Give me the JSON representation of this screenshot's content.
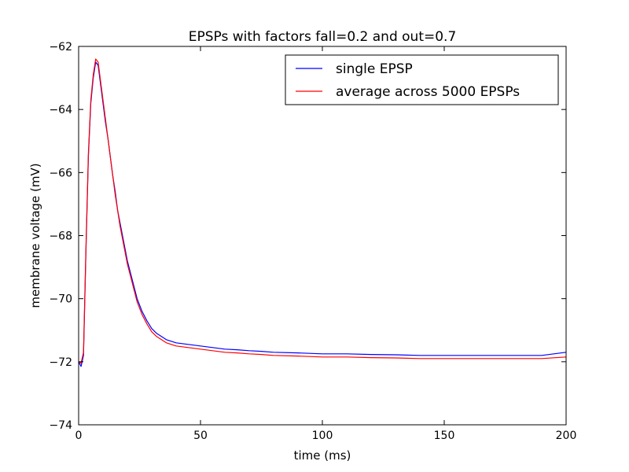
{
  "chart_data": {
    "type": "line",
    "title": "EPSPs with factors fall=0.2 and out=0.7",
    "xlabel": "time (ms)",
    "ylabel": "membrane voltage (mV)",
    "xlim": [
      0,
      200
    ],
    "ylim": [
      -74,
      -62
    ],
    "xticks": [
      0,
      50,
      100,
      150,
      200
    ],
    "yticks": [
      -74,
      -72,
      -70,
      -68,
      -66,
      -64,
      -62
    ],
    "xtick_labels": [
      "0",
      "50",
      "100",
      "150",
      "200"
    ],
    "ytick_labels": [
      "−74",
      "−72",
      "−70",
      "−68",
      "−66",
      "−64",
      "−62"
    ],
    "grid": false,
    "legend_position": "top-right",
    "series": [
      {
        "name": "single EPSP",
        "color": "#0000ff",
        "x": [
          0,
          1,
          2,
          3,
          4,
          5,
          6,
          7,
          8,
          9,
          10,
          11,
          12,
          13,
          14,
          15,
          16,
          17,
          18,
          19,
          20,
          22,
          24,
          26,
          28,
          30,
          32,
          34,
          36,
          38,
          40,
          45,
          50,
          55,
          60,
          65,
          70,
          75,
          80,
          90,
          100,
          110,
          120,
          130,
          140,
          150,
          160,
          170,
          180,
          190,
          200
        ],
        "y": [
          -72.0,
          -72.15,
          -71.8,
          -68.5,
          -65.5,
          -63.8,
          -63.0,
          -62.5,
          -62.6,
          -63.2,
          -63.8,
          -64.4,
          -64.9,
          -65.5,
          -66.1,
          -66.6,
          -67.2,
          -67.6,
          -68.0,
          -68.4,
          -68.8,
          -69.4,
          -70.0,
          -70.4,
          -70.7,
          -70.95,
          -71.1,
          -71.2,
          -71.3,
          -71.35,
          -71.4,
          -71.45,
          -71.5,
          -71.55,
          -71.6,
          -71.62,
          -71.65,
          -71.67,
          -71.7,
          -71.72,
          -71.75,
          -71.75,
          -71.77,
          -71.78,
          -71.8,
          -71.8,
          -71.8,
          -71.8,
          -71.8,
          -71.8,
          -71.7
        ]
      },
      {
        "name": "average across 5000 EPSPs",
        "color": "#ff0000",
        "x": [
          0,
          1,
          2,
          3,
          4,
          5,
          6,
          7,
          8,
          9,
          10,
          11,
          12,
          13,
          14,
          15,
          16,
          17,
          18,
          19,
          20,
          22,
          24,
          26,
          28,
          30,
          32,
          34,
          36,
          38,
          40,
          45,
          50,
          55,
          60,
          65,
          70,
          75,
          80,
          90,
          100,
          110,
          120,
          130,
          140,
          150,
          160,
          170,
          180,
          190,
          200
        ],
        "y": [
          -72.0,
          -72.05,
          -71.7,
          -68.4,
          -65.4,
          -63.7,
          -62.9,
          -62.4,
          -62.5,
          -63.1,
          -63.7,
          -64.3,
          -64.9,
          -65.5,
          -66.1,
          -66.7,
          -67.2,
          -67.7,
          -68.1,
          -68.5,
          -68.9,
          -69.5,
          -70.1,
          -70.5,
          -70.8,
          -71.05,
          -71.2,
          -71.3,
          -71.4,
          -71.45,
          -71.5,
          -71.55,
          -71.6,
          -71.65,
          -71.7,
          -71.72,
          -71.75,
          -71.77,
          -71.8,
          -71.82,
          -71.85,
          -71.85,
          -71.87,
          -71.88,
          -71.9,
          -71.9,
          -71.9,
          -71.9,
          -71.9,
          -71.9,
          -71.85
        ]
      }
    ]
  }
}
